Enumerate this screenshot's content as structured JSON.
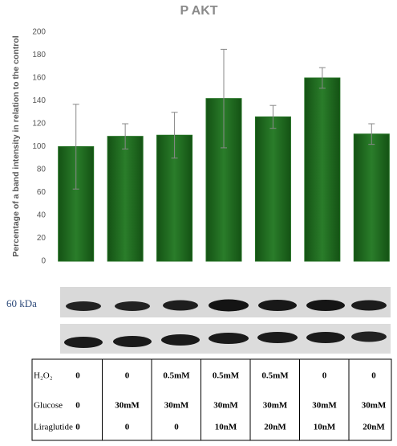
{
  "chart_data": {
    "type": "bar",
    "title": "P AKT",
    "y_label": "Percentage of a band intensity in relation to the control",
    "categories": [
      null,
      null,
      null,
      null,
      null,
      null,
      null
    ],
    "values": [
      100,
      109,
      110,
      142,
      126,
      160,
      111
    ],
    "errors": [
      37,
      11,
      20,
      43,
      10,
      9,
      9
    ],
    "color": "#1f6e1f",
    "ylim": [
      0,
      200
    ],
    "yticks": [
      0,
      20,
      40,
      60,
      80,
      100,
      120,
      140,
      160,
      180,
      200
    ],
    "grid": false
  },
  "blot": {
    "label": "60 kDa"
  },
  "table": {
    "rows": [
      {
        "label": "H₂O₂",
        "cells": [
          "0",
          "0",
          "0.5mM",
          "0.5mM",
          "0.5mM",
          "0",
          "0"
        ]
      },
      {
        "label": "Glucose",
        "cells": [
          "0",
          "30mM",
          "30mM",
          "30mM",
          "30mM",
          "30mM",
          "30mM"
        ]
      },
      {
        "label": "Liraglutide",
        "cells": [
          "0",
          "0",
          "0",
          "10nM",
          "20nM",
          "10nM",
          "20nM"
        ]
      }
    ]
  }
}
